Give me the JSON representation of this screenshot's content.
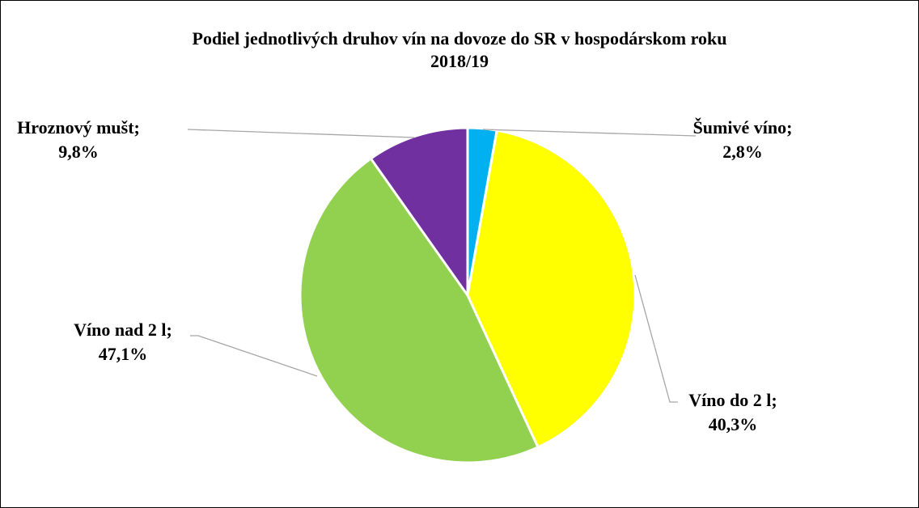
{
  "chart_data": {
    "type": "pie",
    "title": "Podiel jednotlivých druhov vín na dovoze do SR v hospodárskom roku",
    "title_line2": "2018/19",
    "categories": [
      "Šumivé víno",
      "Víno do 2 l",
      "Víno nad 2 l",
      "Hroznový mušt"
    ],
    "label_separator": ";",
    "values": [
      2.8,
      40.3,
      47.1,
      9.8
    ],
    "value_labels": [
      "2,8%",
      "40,3%",
      "47,1%",
      "9,8%"
    ],
    "colors": [
      "#00b0f0",
      "#ffff00",
      "#92d050",
      "#7030a0"
    ]
  }
}
